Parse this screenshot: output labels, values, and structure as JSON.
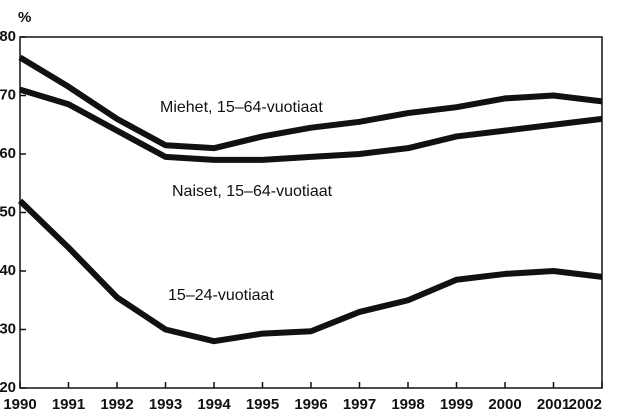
{
  "chart_data": {
    "type": "line",
    "y_label": "%",
    "x": [
      1990,
      1991,
      1992,
      1993,
      1994,
      1995,
      1996,
      1997,
      1998,
      1999,
      2000,
      2001,
      2002
    ],
    "xlim": [
      1990,
      2002
    ],
    "xticks": [
      1990,
      1991,
      1992,
      1993,
      1994,
      1995,
      1996,
      1997,
      1998,
      1999,
      2000,
      2001,
      2002
    ],
    "ylim": [
      20,
      80
    ],
    "yticks": [
      20,
      30,
      40,
      50,
      60,
      70,
      80
    ],
    "series": [
      {
        "name": "Miehet, 15–64-vuotiaat",
        "color": "#111111",
        "values": [
          76.5,
          71.5,
          66,
          61.5,
          61,
          63,
          64.5,
          65.5,
          67,
          68,
          69.5,
          70,
          69
        ]
      },
      {
        "name": "Naiset, 15–64-vuotiaat",
        "color": "#111111",
        "values": [
          71,
          68.5,
          64,
          59.5,
          59,
          59,
          59.5,
          60,
          61,
          63,
          64,
          65,
          66
        ]
      },
      {
        "name": "15–24-vuotiaat",
        "color": "#111111",
        "values": [
          52,
          44,
          35.5,
          30,
          28,
          29.3,
          29.7,
          33,
          35,
          38.5,
          39.5,
          40,
          39
        ]
      }
    ]
  }
}
